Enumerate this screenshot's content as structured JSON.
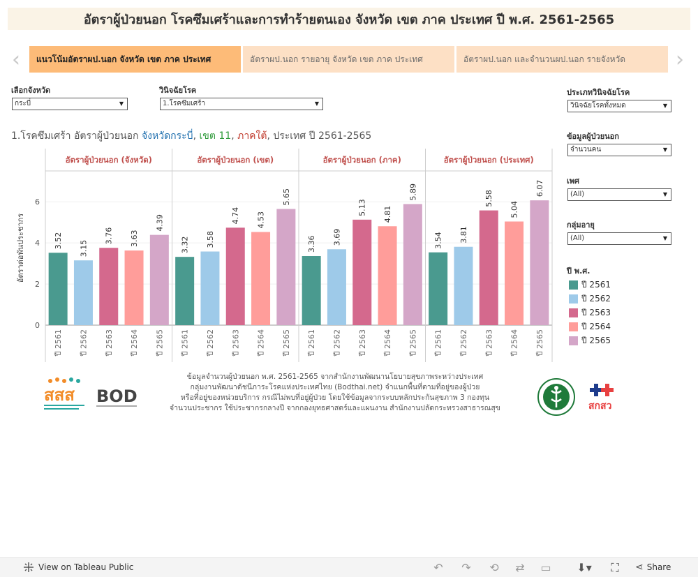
{
  "header": {
    "title": "อัตราผู้ป่วยนอก โรคซึมเศร้าและการทำร้ายตนเอง จังหวัด เขต ภาค ประเทศ ปี พ.ศ. 2561-2565"
  },
  "tabs": [
    {
      "label": "แนวโน้มอัตราผป.นอก จังหวัด เขต ภาค ประเทศ",
      "active": true
    },
    {
      "label": "อัตราผป.นอก รายอายุ จังหวัด เขต ภาค ประเทศ",
      "active": false
    },
    {
      "label": "อัตราผป.นอก และจำนวนผป.นอก รายจังหวัด",
      "active": false
    }
  ],
  "filters": {
    "province": {
      "label": "เลือกจังหวัด",
      "value": "กระบี่"
    },
    "diagnosis": {
      "label": "วินิจฉัยโรค",
      "value": "1.โรคซึมเศร้า"
    },
    "diag_type": {
      "label": "ประเภทวินิจฉัยโรค",
      "value": "วินิจฉัยโรคทั้งหมด"
    },
    "opd_data": {
      "label": "ข้อมูลผู้ป่วยนอก",
      "value": "จำนวนคน"
    },
    "sex": {
      "label": "เพศ",
      "value": "(All)"
    },
    "age_group": {
      "label": "กลุ่มอายุ",
      "value": "(All)"
    }
  },
  "subtitle": {
    "part1": "1.โรคซึมเศร้า อัตราผู้ป่วยนอก ",
    "province": "จังหวัดกระบี่",
    "sep1": ", ",
    "zone": "เขต 11",
    "sep2": ", ",
    "region": "ภาคใต้",
    "part2": ", ประเทศ ปี 2561-2565"
  },
  "legend": {
    "title": "ปี พ.ศ.",
    "items": [
      {
        "label": "ปี 2561",
        "color": "#4a9a8f"
      },
      {
        "label": "ปี 2562",
        "color": "#9ecae9"
      },
      {
        "label": "ปี 2563",
        "color": "#d4698d"
      },
      {
        "label": "ปี 2564",
        "color": "#ff9d9a"
      },
      {
        "label": "ปี 2565",
        "color": "#d4a6c8"
      }
    ]
  },
  "chart_data": {
    "type": "bar",
    "ylabel": "อัตราต่อพันประชากร",
    "ylim": [
      0,
      7.5
    ],
    "yticks": [
      0,
      2,
      4,
      6
    ],
    "grid": true,
    "categories": [
      "ปี 2561",
      "ปี 2562",
      "ปี 2563",
      "ปี 2564",
      "ปี 2565"
    ],
    "colors": [
      "#4a9a8f",
      "#9ecae9",
      "#d4698d",
      "#ff9d9a",
      "#d4a6c8"
    ],
    "panels": [
      {
        "name": "อัตราผู้ป่วยนอก (จังหวัด)",
        "values": [
          3.52,
          3.15,
          3.76,
          3.63,
          4.39
        ]
      },
      {
        "name": "อัตราผู้ป่วยนอก (เขต)",
        "values": [
          3.32,
          3.58,
          4.74,
          4.53,
          5.65
        ]
      },
      {
        "name": "อัตราผู้ป่วยนอก (ภาค)",
        "values": [
          3.36,
          3.69,
          5.13,
          4.81,
          5.89
        ]
      },
      {
        "name": "อัตราผู้ป่วยนอก (ประเทศ)",
        "values": [
          3.54,
          3.81,
          5.58,
          5.04,
          6.07
        ]
      }
    ]
  },
  "footer": {
    "lines": [
      "ข้อมูลจำนวนผู้ป่วยนอก พ.ศ. 2561-2565 จากสำนักงานพัฒนานโยบายสุขภาพระหว่างประเทศ",
      "กลุ่มงานพัฒนาดัชนีภาระโรคแห่งประเทศไทย (Bodthai.net) จำแนกพื้นที่ตามที่อยู่ของผู้ป่วย",
      "หรือที่อยู่ของหน่วยบริการ กรณีไม่พบที่อยู่ผู้ป่วย โดยใช้ข้อมูลจากระบบหลักประกันสุขภาพ 3 กองทุน",
      "จำนวนประชากร ใช้ประชากรกลางปี จากกองยุทธศาสตร์และแผนงาน สำนักงานปลัดกระทรวงสาธารณสุข"
    ],
    "logos": {
      "sss": "สสส",
      "bod": "BOD",
      "nhso": "สกสว"
    }
  },
  "toolbar": {
    "view_label": "View on Tableau Public",
    "share_label": "Share"
  }
}
